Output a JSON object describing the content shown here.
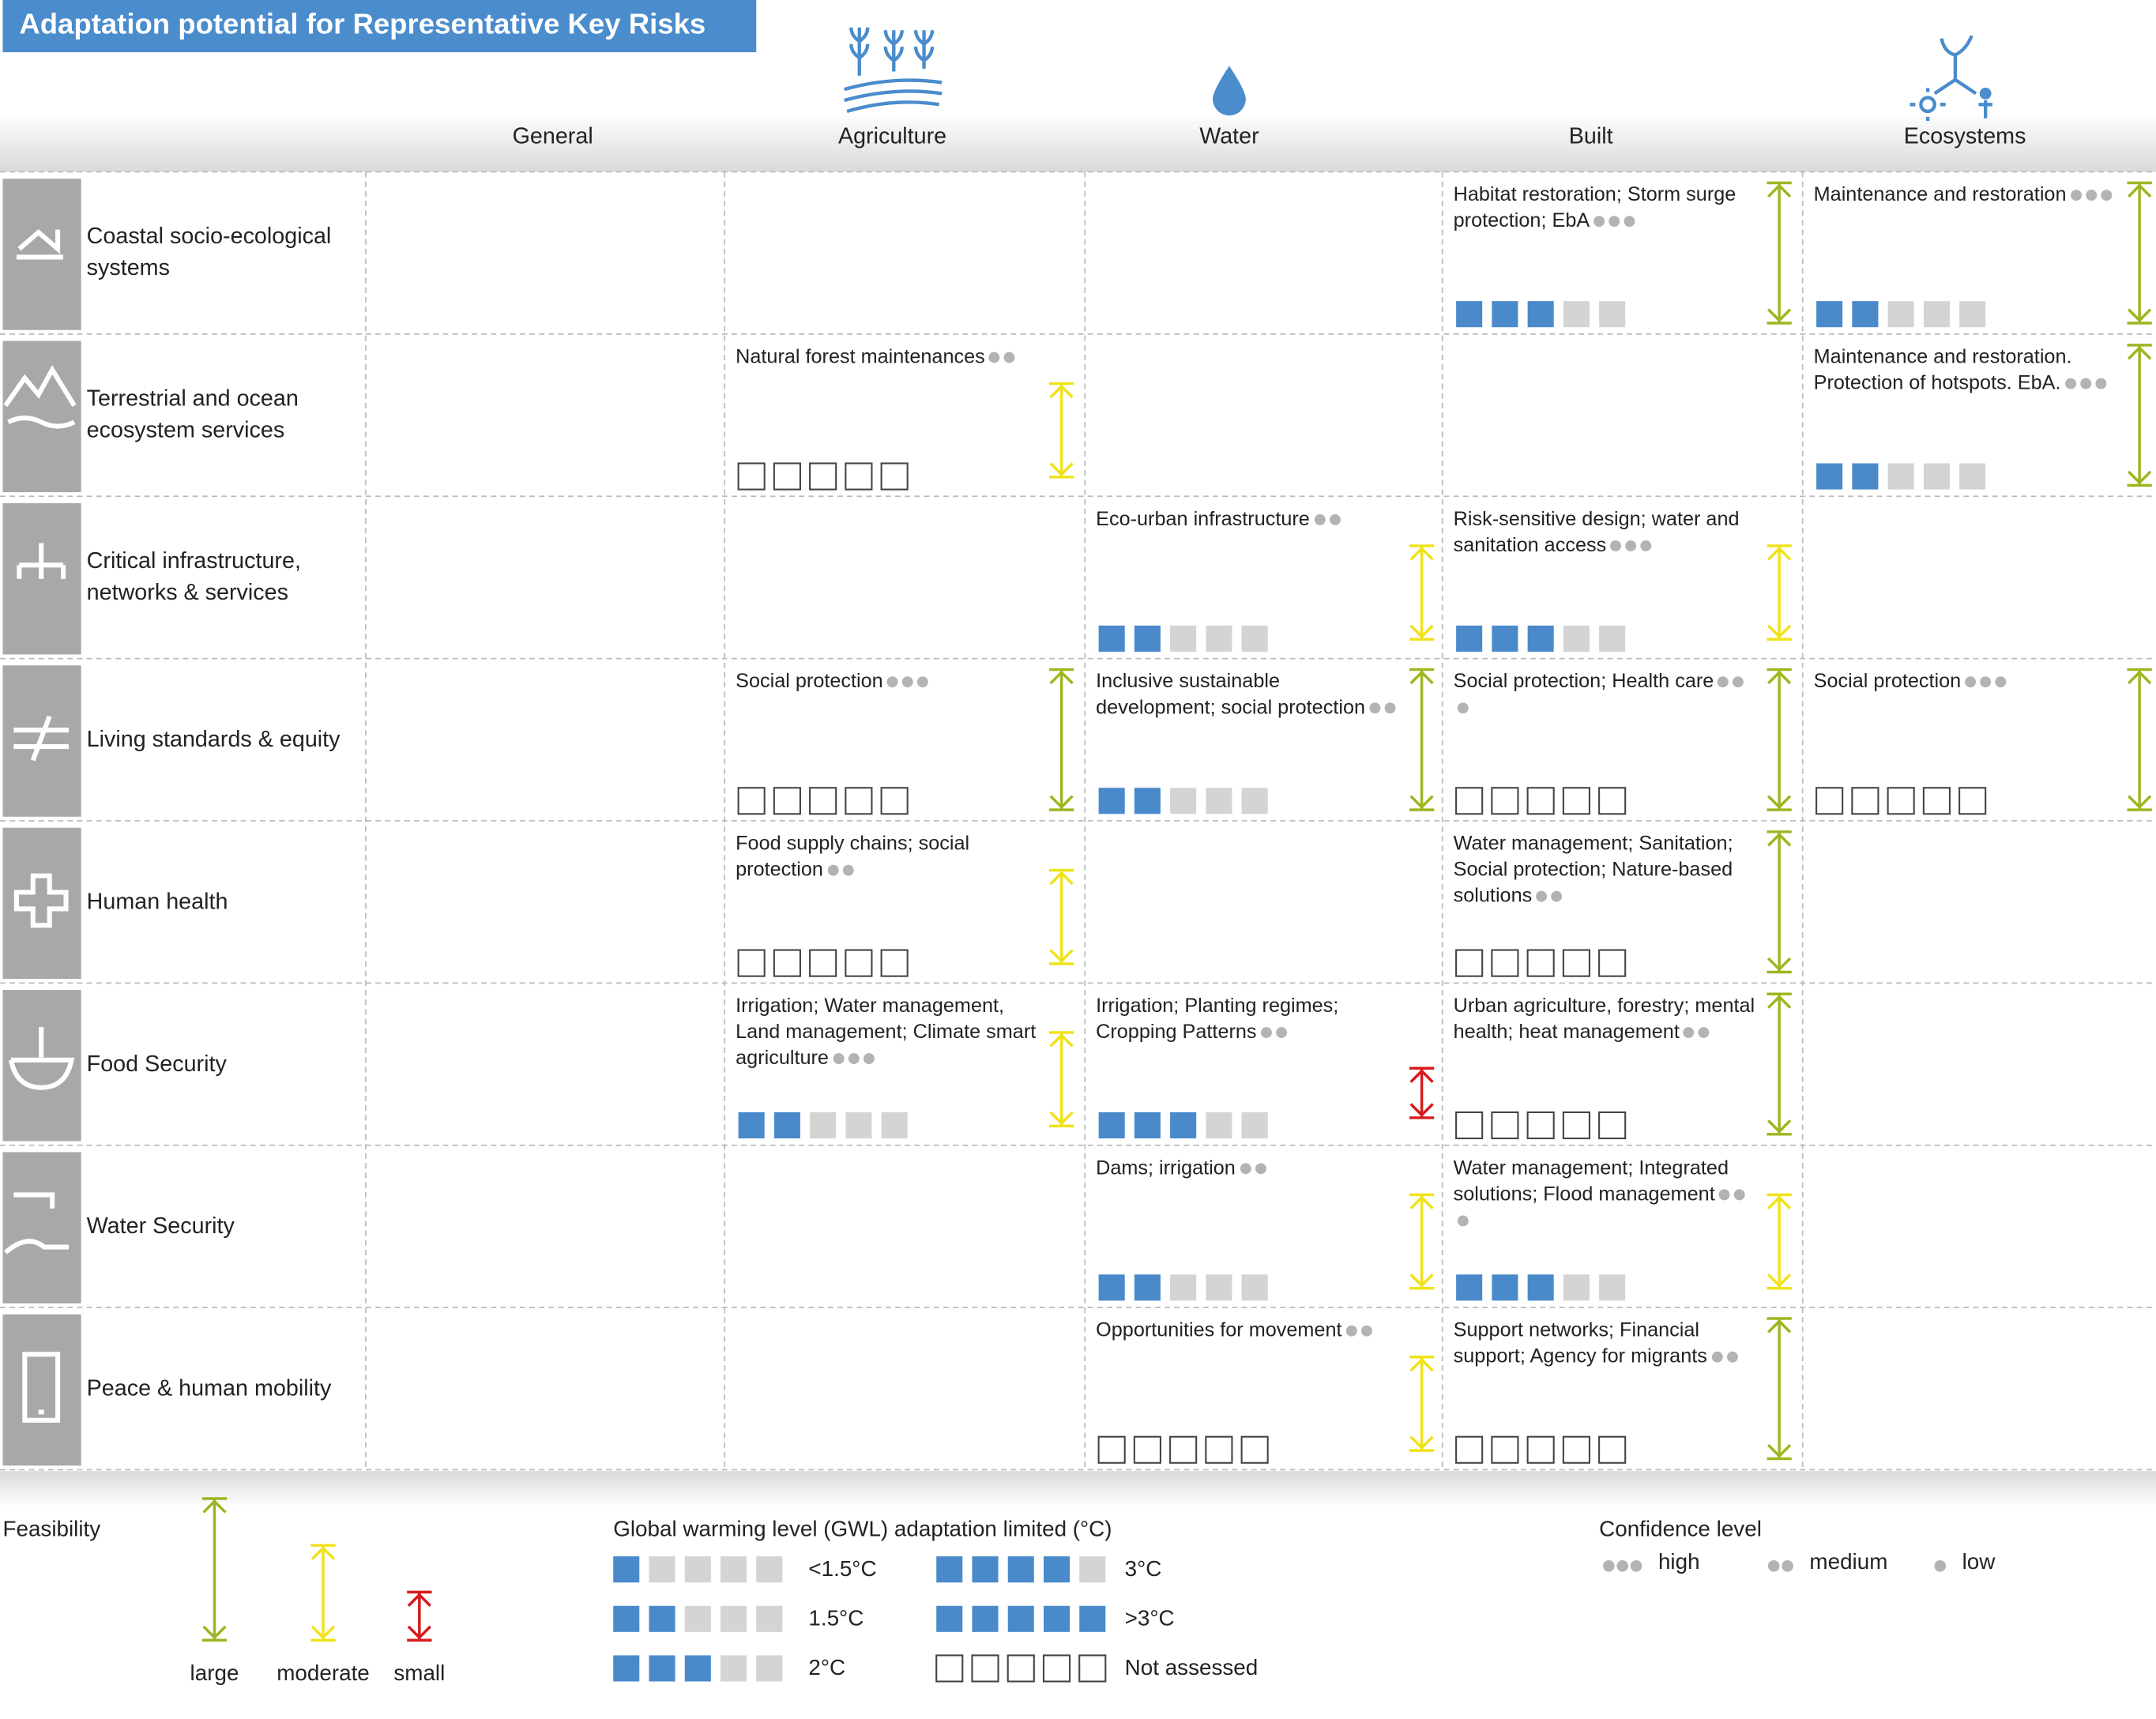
{
  "title": "Adaptation potential for Representative Key Risks",
  "columns": [
    "General",
    "Agriculture",
    "Water",
    "Built",
    "Ecosystems"
  ],
  "rows": [
    {
      "label": "Coastal socio-ecological systems",
      "cells": [
        null,
        null,
        null,
        {
          "text": "Habitat restoration; Storm surge protection; EbA",
          "confidence": "high",
          "gwl": 3,
          "feasibility": "large"
        },
        {
          "text": "Maintenance and restoration",
          "confidence": "high",
          "gwl": 2,
          "feasibility": "large"
        }
      ]
    },
    {
      "label": "Terrestrial and ocean ecosystem services",
      "cells": [
        null,
        {
          "text": "Natural forest maintenances",
          "confidence": "medium",
          "gwl": null,
          "feasibility": "moderate"
        },
        null,
        null,
        {
          "text": "Maintenance and restoration. Protection of hotspots. EbA.",
          "confidence": "high",
          "gwl": 2,
          "feasibility": "large"
        }
      ]
    },
    {
      "label": "Critical infrastructure, networks & services",
      "cells": [
        null,
        null,
        {
          "text": "Eco-urban infrastructure",
          "confidence": "medium",
          "gwl": 2,
          "feasibility": "moderate"
        },
        {
          "text": "Risk-sensitive design; water and sanitation access",
          "confidence": "high",
          "gwl": 3,
          "feasibility": "moderate"
        },
        null
      ]
    },
    {
      "label": "Living standards & equity",
      "cells": [
        null,
        {
          "text": "Social protection",
          "confidence": "high",
          "gwl": null,
          "feasibility": "large"
        },
        {
          "text": "Inclusive sustainable development; social protection",
          "confidence": "medium",
          "gwl": 2,
          "feasibility": "large"
        },
        {
          "text": "Social protection; Health care",
          "confidence": "high",
          "gwl": null,
          "feasibility": "large"
        },
        {
          "text": "Social protection",
          "confidence": "high",
          "gwl": null,
          "feasibility": "large"
        }
      ]
    },
    {
      "label": "Human health",
      "cells": [
        null,
        {
          "text": "Food supply chains; social protection",
          "confidence": "medium",
          "gwl": null,
          "feasibility": "moderate"
        },
        null,
        {
          "text": "Water management; Sanitation; Social protection; Nature-based solutions",
          "confidence": "medium",
          "gwl": null,
          "feasibility": "large"
        },
        null
      ]
    },
    {
      "label": "Food Security",
      "cells": [
        null,
        {
          "text": "Irrigation; Water management, Land management; Climate smart agriculture",
          "confidence": "high",
          "gwl": 2,
          "feasibility": "moderate"
        },
        {
          "text": "Irrigation; Planting regimes; Cropping Patterns",
          "confidence": "medium",
          "gwl": 3,
          "feasibility": "small"
        },
        {
          "text": "Urban agriculture, forestry; mental health; heat management",
          "confidence": "medium",
          "gwl": null,
          "feasibility": "large"
        },
        null
      ]
    },
    {
      "label": "Water Security",
      "cells": [
        null,
        null,
        {
          "text": "Dams; irrigation",
          "confidence": "medium",
          "gwl": 2,
          "feasibility": "moderate"
        },
        {
          "text": "Water management; Integrated solutions; Flood management",
          "confidence": "high",
          "gwl": 3,
          "feasibility": "moderate"
        },
        null
      ]
    },
    {
      "label": "Peace & human mobility",
      "cells": [
        null,
        null,
        {
          "text": "Opportunities for movement",
          "confidence": "medium",
          "gwl": null,
          "feasibility": "moderate"
        },
        {
          "text": "Support networks; Financial support; Agency for migrants",
          "confidence": "medium",
          "gwl": null,
          "feasibility": "large"
        },
        null
      ]
    }
  ],
  "legend": {
    "feasibility": {
      "title": "Feasibility",
      "entries": [
        {
          "label": "large",
          "color": "#9fb520"
        },
        {
          "label": "moderate",
          "color": "#f0e21a"
        },
        {
          "label": "small",
          "color": "#d7191c"
        }
      ]
    },
    "gwl": {
      "title": "Global warming level (GWL) adaptation limited (°C)",
      "entries": [
        {
          "label": "<1.5°C",
          "filled": 1
        },
        {
          "label": "1.5°C",
          "filled": 2
        },
        {
          "label": "2°C",
          "filled": 3
        },
        {
          "label": "3°C",
          "filled": 4
        },
        {
          "label": ">3°C",
          "filled": 5
        },
        {
          "label": "Not assessed",
          "filled": null
        }
      ]
    },
    "confidence": {
      "title": "Confidence level",
      "entries": [
        {
          "label": "high",
          "dots": 3
        },
        {
          "label": "medium",
          "dots": 2
        },
        {
          "label": "low",
          "dots": 1
        }
      ]
    }
  }
}
